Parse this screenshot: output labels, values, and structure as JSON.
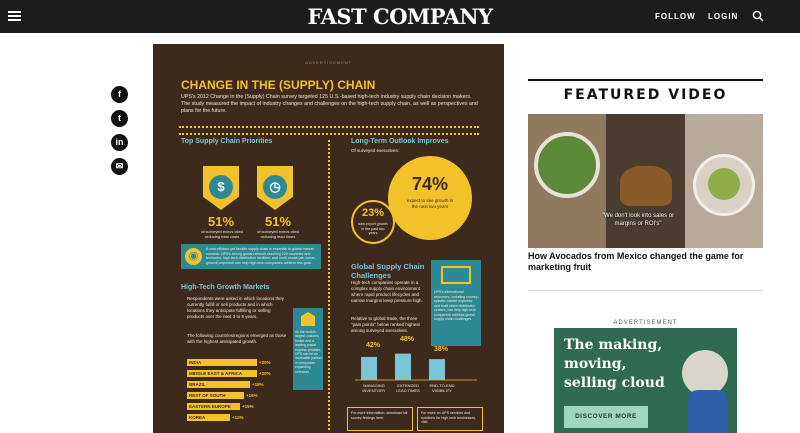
{
  "header": {
    "logo": "FAST COMPANY",
    "follow_label": "FOLLOW",
    "login_label": "LOGIN"
  },
  "social": [
    "f",
    "t",
    "in",
    "✉"
  ],
  "infographic": {
    "advertisement_label": "ADVERTISEMENT",
    "title": "CHANGE IN THE (SUPPLY) CHAIN",
    "intro": "UPS's 2012 Change in the (Supply) Chain survey targeted 125 U.S.-based high-tech industry supply chain decision makers. The study measured the impact of industry changes and challenges on the high-tech supply chain, as well as perspectives and plans for the future.",
    "priorities_title": "Top Supply Chain Priorities",
    "priority_1_pct": "51%",
    "priority_1_label": "of surveyed execs cited reducing total costs",
    "priority_2_pct": "51%",
    "priority_2_label": "of surveyed execs cited reducing lead times",
    "outlook_title": "Long-Term Outlook Improves",
    "outlook_sub": "Of surveyed executives:",
    "outlook_big_pct": "74%",
    "outlook_big_label": "expect to see growth in the next two years",
    "outlook_small_pct": "23%",
    "outlook_small_label": "saw export growth in the past two years",
    "network_text": "A cost-efficient yet flexible supply chain is essential to global market success. UPS's strong global network reaching 220 countries and territories, high-tech distribution facilities, and multi-modal (air, ocean, ground) expertise can help high-tech companies achieve this goal.",
    "growth_title": "High-Tech Growth Markets",
    "growth_text": "Respondents were asked in which locations they currently fulfill or sell products and in which locations they anticipate fulfilling or selling products over the next 3 to 5 years.",
    "growth_text_2": "The following countries/regions emerged as those with the highest anticipated growth.",
    "regions": [
      {
        "name": "INDIA",
        "value": "+20%"
      },
      {
        "name": "MIDDLE EAST & AFRICA",
        "value": "+20%"
      },
      {
        "name": "BRAZIL",
        "value": "+18%"
      },
      {
        "name": "REST OF SOUTH AMERICA",
        "value": "+16%"
      },
      {
        "name": "EASTERN EUROPE",
        "value": "+15%"
      },
      {
        "name": "KOREA",
        "value": "+12%"
      }
    ],
    "growth_side_text": "As the world's largest customs broker and a leading postal express provider, UPS can be an invaluable partner in companies expanding overseas.",
    "challenges_title": "Global Supply Chain Challenges",
    "challenges_text": "High-tech companies operate in a complex supply chain environment where rapid product lifecycles and narrow margins keep pressure high.",
    "challenges_text_2": "Relative to global trade, the three \"pain points\" below ranked highest among surveyed executives.",
    "challenges_side_text": "UPS's international resources, including country-specific market expertise and multi-client distribution centers, can help high-tech companies address global supply chain challenges.",
    "bars": [
      {
        "pct": "42%",
        "value": 42,
        "label": "MANAGING INVENTORY"
      },
      {
        "pct": "48%",
        "value": 48,
        "label": "EXTENDED LEAD TIMES"
      },
      {
        "pct": "38%",
        "value": 38,
        "label": "END-TO-END VISIBILITY"
      }
    ],
    "footer_1": "For more information, download full survey findings here:",
    "footer_2": "For more on UPS services and solutions for high-tech businesses, visit:"
  },
  "featured": {
    "title": "FEATURED VIDEO",
    "video_caption": "\"We don't look into sales or margins or ROI's\"",
    "headline": "How Avocados from Mexico changed the game for marketing fruit"
  },
  "ad": {
    "label": "ADVERTISEMENT",
    "text": "The making, moving, selling cloud",
    "button": "DISCOVER MORE"
  }
}
